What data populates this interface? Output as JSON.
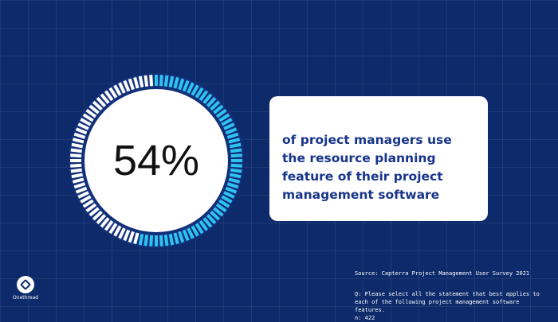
{
  "chart_data": {
    "type": "gauge",
    "value": 54,
    "max": 100,
    "value_label": "54%",
    "caption": "of project managers use the resource planning feature of their project management software",
    "colors": {
      "filled": "#2ec4f1",
      "unfilled": "#ffffff",
      "track": "#12307a",
      "center": "#ffffff",
      "value_text": "#111111"
    }
  },
  "footer": {
    "source": "Source: Capterra Project Management User Survey 2021",
    "question": "Q: Please select all the statement that best applies to each of the following project management software features.",
    "n": "n: 422"
  },
  "brand": {
    "name": "Onethread",
    "logo_icon": "onethread-logo-icon"
  },
  "colors": {
    "background": "#0d2b6b",
    "card_text": "#16348a"
  }
}
